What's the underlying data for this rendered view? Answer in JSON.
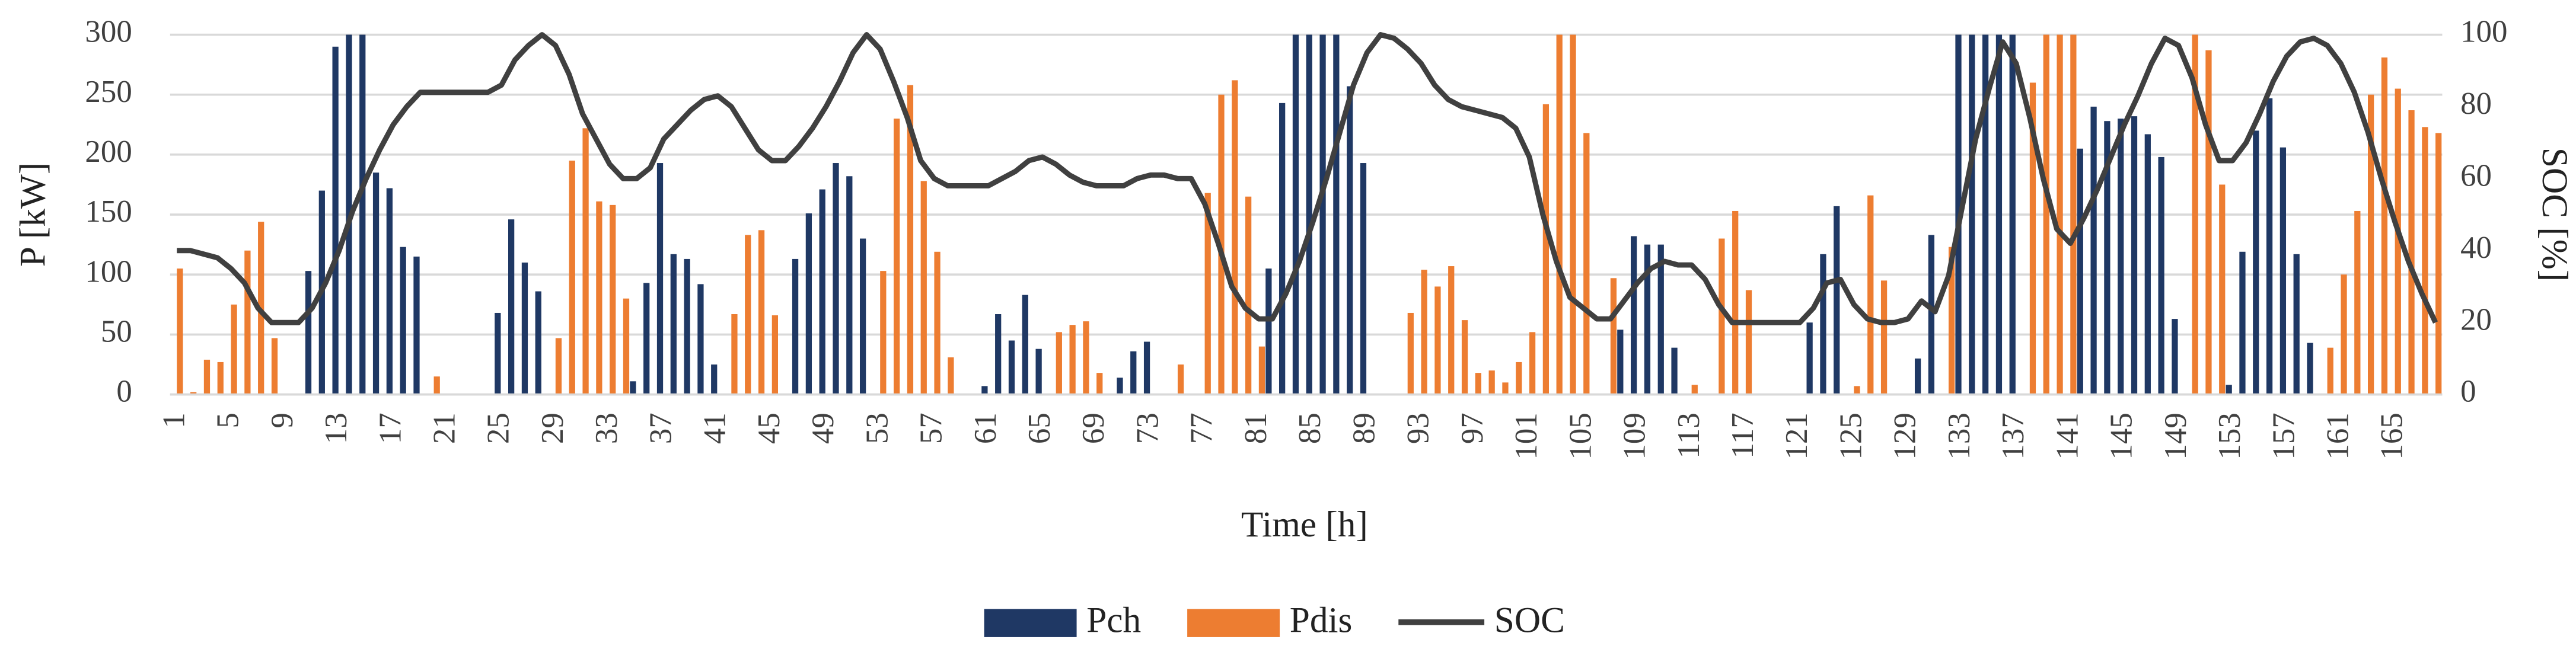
{
  "chart_data": {
    "type": "bar",
    "x_label": "Time [h]",
    "y_label": "P [kW]",
    "y2_label": "SOC [%]",
    "categories": [
      1,
      null,
      null,
      null,
      5,
      null,
      null,
      null,
      9,
      null,
      null,
      null,
      13,
      null,
      null,
      null,
      17,
      null,
      null,
      null,
      21,
      null,
      null,
      null,
      25,
      null,
      null,
      null,
      29,
      null,
      null,
      null,
      33,
      null,
      null,
      null,
      37,
      null,
      null,
      null,
      41,
      null,
      null,
      null,
      45,
      null,
      null,
      null,
      49,
      null,
      null,
      null,
      53,
      null,
      null,
      null,
      57,
      null,
      null,
      null,
      61,
      null,
      null,
      null,
      65,
      null,
      null,
      null,
      69,
      null,
      null,
      null,
      73,
      null,
      null,
      null,
      77,
      null,
      null,
      null,
      81,
      null,
      null,
      null,
      85,
      null,
      null,
      null,
      89,
      null,
      null,
      null,
      93,
      null,
      null,
      null,
      97,
      null,
      null,
      null,
      101,
      null,
      null,
      null,
      105,
      null,
      null,
      null,
      109,
      null,
      null,
      null,
      113,
      null,
      null,
      null,
      117,
      null,
      null,
      null,
      121,
      null,
      null,
      null,
      125,
      null,
      null,
      null,
      129,
      null,
      null,
      null,
      133,
      null,
      null,
      null,
      137,
      null,
      null,
      null,
      141,
      null,
      null,
      null,
      145,
      null,
      null,
      null,
      149,
      null,
      null,
      null,
      153,
      null,
      null,
      null,
      157,
      null,
      null,
      null,
      161,
      null,
      null,
      null,
      165,
      null,
      null,
      null
    ],
    "ylim": [
      0,
      300
    ],
    "yticks": [
      0,
      50,
      100,
      150,
      200,
      250,
      300
    ],
    "y2lim": [
      0,
      100
    ],
    "y2ticks": [
      0,
      20,
      40,
      60,
      80,
      100
    ],
    "grid": true,
    "legend": "bottom",
    "series": [
      {
        "name": "Pch",
        "color": "#1f3864",
        "type": "bar",
        "values": [
          0,
          0,
          0,
          0,
          0,
          0,
          0,
          0,
          0,
          0,
          103,
          170,
          290,
          300,
          300,
          185,
          172,
          123,
          115,
          0,
          0,
          0,
          0,
          0,
          68,
          146,
          110,
          86,
          0,
          0,
          0,
          0,
          0,
          0,
          11,
          93,
          193,
          117,
          113,
          92,
          25,
          0,
          0,
          0,
          0,
          0,
          113,
          151,
          171,
          193,
          182,
          130,
          0,
          0,
          0,
          0,
          0,
          0,
          0,
          0,
          7,
          67,
          45,
          83,
          38,
          0,
          0,
          0,
          0,
          0,
          14,
          36,
          44,
          0,
          0,
          0,
          0,
          0,
          0,
          0,
          0,
          105,
          243,
          300,
          300,
          300,
          300,
          257,
          193,
          0,
          0,
          0,
          0,
          0,
          0,
          0,
          0,
          0,
          0,
          0,
          0,
          0,
          0,
          0,
          0,
          0,
          0,
          54,
          132,
          125,
          125,
          39,
          0,
          0,
          0,
          0,
          0,
          0,
          0,
          0,
          0,
          60,
          117,
          157,
          0,
          0,
          0,
          0,
          0,
          30,
          133,
          0,
          300,
          300,
          300,
          300,
          300,
          0,
          0,
          0,
          0,
          205,
          240,
          228,
          230,
          232,
          217,
          198,
          63,
          0,
          0,
          0,
          8,
          119,
          220,
          247,
          206,
          117,
          43,
          0,
          0,
          0,
          0,
          0,
          0,
          0,
          0,
          0
        ]
      },
      {
        "name": "Pdis",
        "color": "#ed7d31",
        "type": "bar",
        "values": [
          105,
          2,
          29,
          27,
          75,
          120,
          144,
          47,
          0,
          0,
          0,
          0,
          0,
          0,
          0,
          0,
          0,
          0,
          0,
          15,
          0,
          0,
          0,
          0,
          0,
          0,
          0,
          0,
          47,
          195,
          222,
          161,
          158,
          80,
          0,
          0,
          0,
          0,
          0,
          0,
          0,
          67,
          133,
          137,
          66,
          0,
          0,
          0,
          0,
          0,
          0,
          0,
          103,
          230,
          258,
          178,
          119,
          31,
          0,
          0,
          0,
          0,
          0,
          0,
          0,
          52,
          58,
          61,
          18,
          0,
          0,
          0,
          0,
          0,
          25,
          0,
          168,
          250,
          262,
          165,
          40,
          0,
          0,
          0,
          0,
          0,
          0,
          0,
          0,
          0,
          0,
          68,
          104,
          90,
          107,
          62,
          18,
          20,
          10,
          27,
          52,
          242,
          300,
          300,
          218,
          0,
          97,
          0,
          0,
          0,
          0,
          0,
          8,
          0,
          130,
          153,
          87,
          0,
          0,
          0,
          0,
          0,
          0,
          0,
          7,
          166,
          95,
          0,
          0,
          0,
          0,
          123,
          0,
          0,
          0,
          0,
          0,
          260,
          300,
          300,
          300,
          0,
          0,
          0,
          0,
          0,
          0,
          0,
          0,
          300,
          287,
          175,
          0,
          0,
          0,
          0,
          0,
          0,
          0,
          39,
          100,
          153,
          250,
          281,
          255,
          237,
          223,
          218
        ]
      },
      {
        "name": "SOC",
        "color": "#404040",
        "type": "line",
        "axis": "y2",
        "values": [
          40,
          40,
          39,
          38,
          35,
          31,
          24,
          20,
          20,
          20,
          24,
          31,
          40,
          51,
          60,
          68,
          75,
          80,
          84,
          84,
          84,
          84,
          84,
          84,
          86,
          93,
          97,
          100,
          97,
          89,
          78,
          71,
          64,
          60,
          60,
          63,
          71,
          75,
          79,
          82,
          83,
          80,
          74,
          68,
          65,
          65,
          69,
          74,
          80,
          87,
          95,
          100,
          96,
          87,
          77,
          65,
          60,
          58,
          58,
          58,
          58,
          60,
          62,
          65,
          66,
          64,
          61,
          59,
          58,
          58,
          58,
          60,
          61,
          61,
          60,
          60,
          53,
          42,
          30,
          24,
          21,
          21,
          28,
          37,
          48,
          60,
          73,
          86,
          95,
          100,
          99,
          96,
          92,
          86,
          82,
          80,
          79,
          78,
          77,
          74,
          66,
          50,
          37,
          27,
          24,
          21,
          21,
          26,
          31,
          35,
          37,
          36,
          36,
          32,
          25,
          20,
          20,
          20,
          20,
          20,
          20,
          24,
          31,
          32,
          25,
          21,
          20,
          20,
          21,
          26,
          23,
          33,
          52,
          71,
          85,
          98,
          92,
          77,
          60,
          46,
          42,
          49,
          57,
          66,
          75,
          83,
          92,
          99,
          97,
          88,
          75,
          65,
          65,
          70,
          78,
          87,
          94,
          98,
          99,
          97,
          92,
          84,
          73,
          60,
          48,
          37,
          28,
          20
        ]
      }
    ]
  }
}
